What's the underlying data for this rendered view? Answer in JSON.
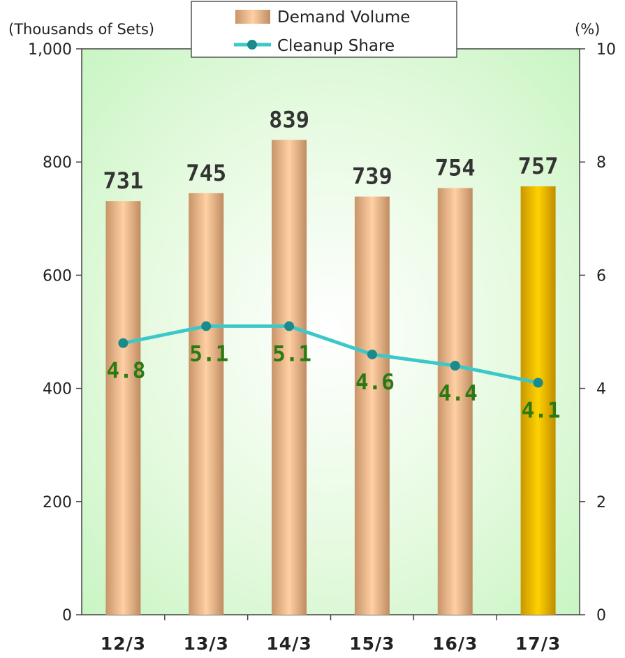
{
  "chart_data": {
    "type": "bar",
    "categories": [
      "12/3",
      "13/3",
      "14/3",
      "15/3",
      "16/3",
      "17/3"
    ],
    "series": [
      {
        "name": "Demand Volume",
        "axis": "left",
        "chart_type": "bar",
        "values": [
          731,
          745,
          839,
          739,
          754,
          757
        ],
        "value_labels": [
          "731",
          "745",
          "839",
          "739",
          "754",
          "757"
        ],
        "color": "#e8b88c",
        "highlight_color": "#e8b400",
        "highlight_index": 5
      },
      {
        "name": "Cleanup Share",
        "axis": "right",
        "chart_type": "line",
        "values": [
          4.8,
          5.1,
          5.1,
          4.6,
          4.4,
          4.1
        ],
        "value_labels": [
          "4.8",
          "5.1",
          "5.1",
          "4.6",
          "4.4",
          "4.1"
        ],
        "color": "#3cc8c8",
        "label_color": "#2a7a12"
      }
    ],
    "left_axis": {
      "unit": "(Thousands of Sets)",
      "range": [
        0,
        1000
      ],
      "ticks": [
        0,
        200,
        400,
        600,
        800,
        1000
      ],
      "tick_labels": [
        "0",
        "200",
        "400",
        "600",
        "800",
        "1,000"
      ]
    },
    "right_axis": {
      "unit": "(%)",
      "range": [
        0,
        10
      ],
      "ticks": [
        0,
        2,
        4,
        6,
        8,
        10
      ],
      "tick_labels": [
        "0",
        "2",
        "4",
        "6",
        "8",
        "10"
      ]
    },
    "legend_position": "top-center",
    "background": "light green gradient",
    "grid": false
  }
}
